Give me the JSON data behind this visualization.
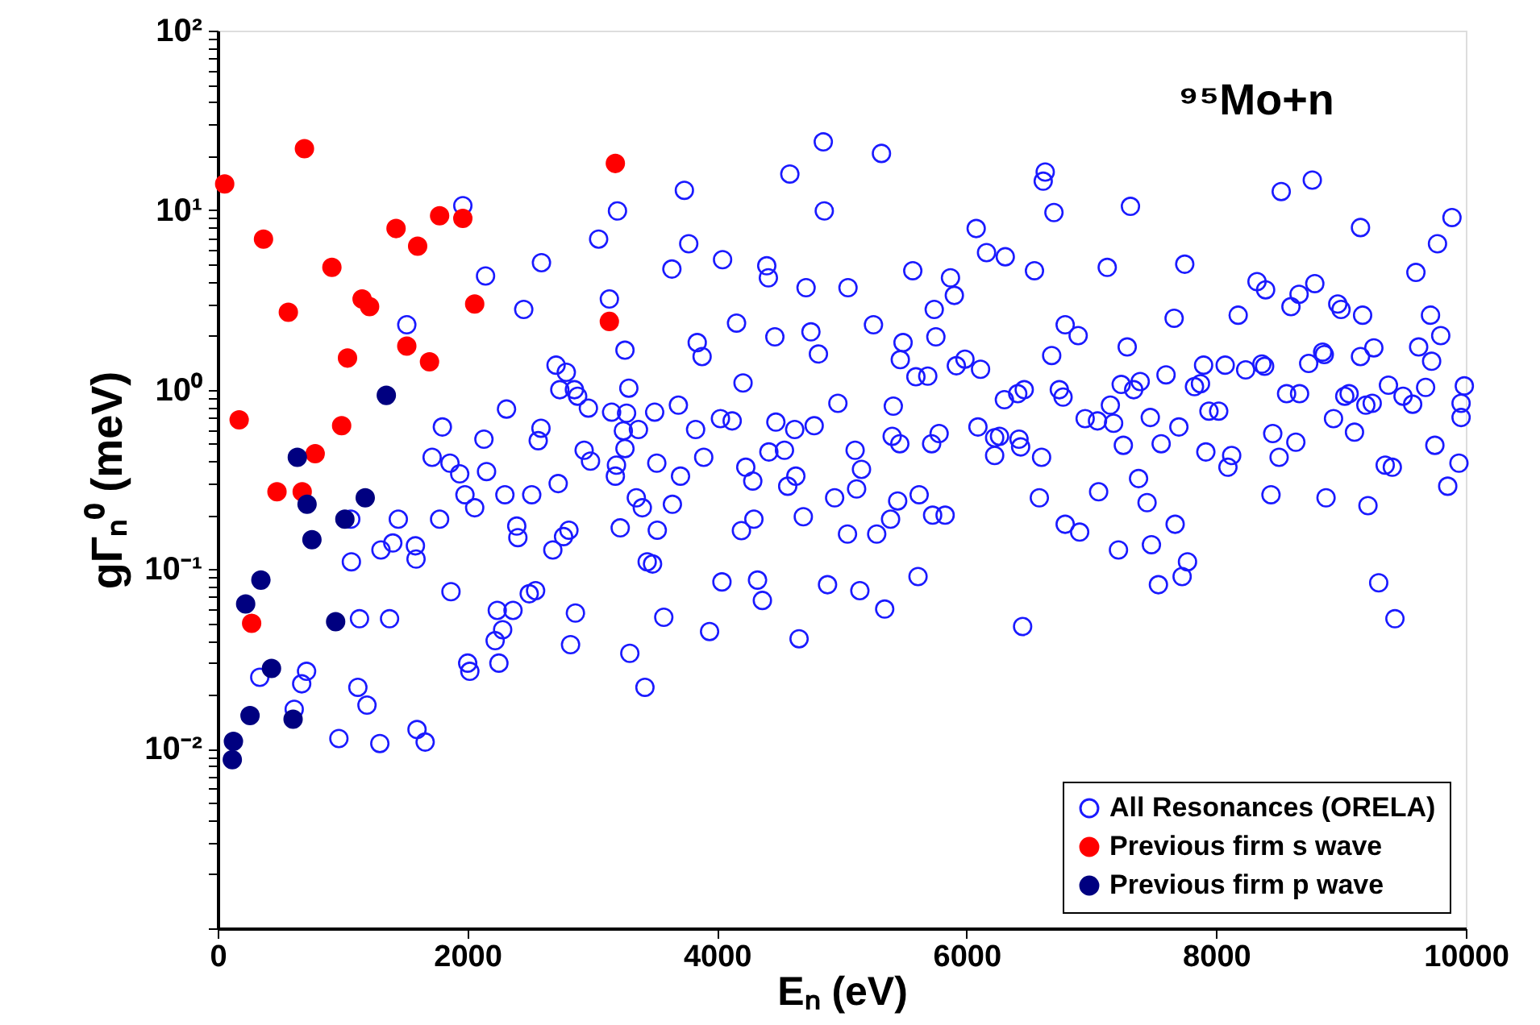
{
  "chart_data": {
    "type": "scatter",
    "xlabel": "Eₙ (eV)",
    "ylabel": "gΓₙ⁰ (meV)",
    "log": true,
    "grid": false,
    "legend": "bottom right",
    "marker": "circle",
    "annotations": [
      "⁹⁵Mo+n"
    ],
    "xlim": [
      0,
      10000
    ],
    "xticks": [
      0,
      2000,
      4000,
      6000,
      8000,
      10000
    ],
    "ylim": [
      0.001,
      100
    ],
    "yticks": [
      {
        "value": 0.001,
        "label": null
      },
      {
        "value": 0.002,
        "label": null
      },
      {
        "value": 0.003,
        "label": null
      },
      {
        "value": 0.004,
        "label": null
      },
      {
        "value": 0.005,
        "label": null
      },
      {
        "value": 0.006,
        "label": null
      },
      {
        "value": 0.007,
        "label": null
      },
      {
        "value": 0.008,
        "label": null
      },
      {
        "value": 0.009,
        "label": null
      },
      {
        "value": 0.01,
        "label": "10⁻²"
      },
      {
        "value": 0.02,
        "label": null
      },
      {
        "value": 0.03,
        "label": null
      },
      {
        "value": 0.04,
        "label": null
      },
      {
        "value": 0.05,
        "label": null
      },
      {
        "value": 0.06,
        "label": null
      },
      {
        "value": 0.07,
        "label": null
      },
      {
        "value": 0.08,
        "label": null
      },
      {
        "value": 0.09,
        "label": null
      },
      {
        "value": 0.1,
        "label": "10⁻¹"
      },
      {
        "value": 0.2,
        "label": null
      },
      {
        "value": 0.3,
        "label": null
      },
      {
        "value": 0.4,
        "label": null
      },
      {
        "value": 0.5,
        "label": null
      },
      {
        "value": 0.6,
        "label": null
      },
      {
        "value": 0.7,
        "label": null
      },
      {
        "value": 0.8,
        "label": null
      },
      {
        "value": 0.9,
        "label": null
      },
      {
        "value": 1,
        "label": "10⁰"
      },
      {
        "value": 2,
        "label": null
      },
      {
        "value": 3,
        "label": null
      },
      {
        "value": 4,
        "label": null
      },
      {
        "value": 5,
        "label": null
      },
      {
        "value": 6,
        "label": null
      },
      {
        "value": 7,
        "label": null
      },
      {
        "value": 8,
        "label": null
      },
      {
        "value": 9,
        "label": null
      },
      {
        "value": 10,
        "label": "10¹"
      },
      {
        "value": 20,
        "label": null
      },
      {
        "value": 30,
        "label": null
      },
      {
        "value": 40,
        "label": null
      },
      {
        "value": 50,
        "label": null
      },
      {
        "value": 60,
        "label": null
      },
      {
        "value": 70,
        "label": null
      },
      {
        "value": 80,
        "label": null
      },
      {
        "value": 90,
        "label": null
      },
      {
        "value": 100,
        "label": "10²"
      }
    ],
    "series": [
      {
        "name": "All Resonances (ORELA)",
        "color": "#1a1aff",
        "x": [
          1964,
          3203,
          3052,
          2594,
          2146,
          2452,
          3138,
          1515,
          3263,
          2711,
          2793,
          2741,
          2858,
          2884,
          2970,
          3294,
          3156,
          3276,
          3371,
          3250,
          2314,
          1800,
          2133,
          2590,
          2568,
          1718,
          1861,
          1939,
          2154,
          2936,
          2987,
          3263,
          3195,
          3186,
          2728,
          1981,
          2301,
          2516,
          2059,
          3354,
          3402,
          1066,
          1447,
          1778,
          1308,
          1403,
          1584,
          1589,
          1071,
          2396,
          2405,
          2685,
          2771,
          2814,
          3225,
          1869,
          2496,
          2547,
          2240,
          2366,
          2866,
          1136,
          1377,
          2283,
          2223,
          2827,
          3302,
          2003,
          2020,
          2253,
          337,
          712,
          673,
          1123,
          1196,
          613,
          971,
          1299,
          1597,
          1662,
          3423,
          3441,
          4852,
          5318,
          4584,
          3739,
          4860,
          6630,
          6614,
          6700,
          6077,
          6160,
          6310,
          6544,
          3774,
          4045,
          3639,
          4399,
          4412,
          4714,
          5050,
          5569,
          5871,
          5902,
          5741,
          4157,
          4464,
          4753,
          5254,
          5754,
          3842,
          3881,
          4813,
          5491,
          5469,
          5594,
          5689,
          5918,
          5987,
          6112,
          6790,
          6682,
          4209,
          3691,
          3501,
          3829,
          4028,
          4122,
          4472,
          4623,
          4779,
          4969,
          5413,
          5404,
          5465,
          5720,
          5780,
          6091,
          6225,
          6264,
          6420,
          6433,
          6225,
          6601,
          6303,
          6410,
          6462,
          6743,
          6773,
          3518,
          3708,
          3894,
          4416,
          4541,
          4231,
          4287,
          4632,
          4567,
          5107,
          5158,
          5119,
          4943,
          5620,
          5448,
          6583,
          3643,
          4692,
          4296,
          5391,
          5728,
          5828,
          3522,
          4196,
          5046,
          5280,
          6790,
          3484,
          4040,
          4325,
          4364,
          4886,
          5145,
          5344,
          5611,
          3574,
          3941,
          4658,
          6449,
          8770,
          8521,
          7313,
          9889,
          9156,
          9773,
          7127,
          7748,
          9600,
          8327,
          8396,
          8790,
          8664,
          8599,
          8974,
          9000,
          9173,
          8176,
          7663,
          9717,
          9799,
          6894,
          7287,
          9622,
          9263,
          9156,
          9726,
          8853,
          8866,
          8741,
          7899,
          8072,
          8236,
          8366,
          8388,
          7598,
          7239,
          7391,
          7339,
          7826,
          7874,
          8564,
          8668,
          9030,
          9065,
          9380,
          9497,
          9678,
          9574,
          9988,
          9962,
          9962,
          9199,
          9250,
          7152,
          6950,
          7049,
          7178,
          7472,
          7701,
          7942,
          8020,
          8940,
          9108,
          8453,
          7256,
          7559,
          7917,
          8124,
          8094,
          8504,
          8638,
          9752,
          9945,
          9354,
          9411,
          7378,
          7058,
          7446,
          8439,
          8880,
          9216,
          9855,
          7671,
          6906,
          7217,
          7481,
          7770,
          7727,
          7537,
          9302,
          9432
        ],
        "values": [
          10.6,
          9.9,
          6.9,
          5.1,
          4.3,
          2.8,
          3.2,
          2.3,
          1.66,
          1.37,
          1.25,
          1.0,
          1.0,
          0.92,
          0.79,
          1.02,
          0.75,
          0.74,
          0.6,
          0.59,
          0.78,
          0.62,
          0.53,
          0.61,
          0.52,
          0.42,
          0.39,
          0.34,
          0.35,
          0.46,
          0.4,
          0.47,
          0.38,
          0.33,
          0.3,
          0.26,
          0.26,
          0.26,
          0.22,
          0.25,
          0.22,
          0.19,
          0.19,
          0.19,
          0.128,
          0.14,
          0.135,
          0.114,
          0.11,
          0.174,
          0.15,
          0.128,
          0.152,
          0.165,
          0.17,
          0.075,
          0.073,
          0.076,
          0.059,
          0.059,
          0.057,
          0.053,
          0.053,
          0.046,
          0.04,
          0.038,
          0.034,
          0.03,
          0.027,
          0.03,
          0.025,
          0.027,
          0.023,
          0.022,
          0.0175,
          0.0166,
          0.0114,
          0.0107,
          0.0128,
          0.0109,
          0.022,
          0.11,
          24,
          20.7,
          15.9,
          12.9,
          9.9,
          16.3,
          14.5,
          9.7,
          7.9,
          5.8,
          5.5,
          4.6,
          6.5,
          5.3,
          4.7,
          4.9,
          4.2,
          3.7,
          3.7,
          4.6,
          4.2,
          3.35,
          2.8,
          2.35,
          1.97,
          2.1,
          2.3,
          1.97,
          1.83,
          1.53,
          1.58,
          1.83,
          1.47,
          1.18,
          1.19,
          1.36,
          1.48,
          1.3,
          2.3,
          1.55,
          1.09,
          0.82,
          0.75,
          0.6,
          0.69,
          0.67,
          0.66,
          0.6,
          0.63,
          0.84,
          0.81,
          0.55,
          0.5,
          0.5,
          0.57,
          0.62,
          0.54,
          0.55,
          0.53,
          0.48,
          0.43,
          0.42,
          0.88,
          0.95,
          1.0,
          1.0,
          0.91,
          0.39,
          0.33,
          0.42,
          0.45,
          0.46,
          0.37,
          0.31,
          0.33,
          0.29,
          0.46,
          0.36,
          0.28,
          0.25,
          0.26,
          0.24,
          0.25,
          0.23,
          0.196,
          0.19,
          0.19,
          0.2,
          0.2,
          0.165,
          0.164,
          0.157,
          0.157,
          0.178,
          0.107,
          0.085,
          0.087,
          0.067,
          0.082,
          0.076,
          0.06,
          0.091,
          0.054,
          0.045,
          0.041,
          0.048,
          14.7,
          12.7,
          10.5,
          9.1,
          8.0,
          6.5,
          4.8,
          5.0,
          4.5,
          4.0,
          3.6,
          3.9,
          3.4,
          2.9,
          3.0,
          2.8,
          2.6,
          2.6,
          2.5,
          2.6,
          2.0,
          2.0,
          1.73,
          1.73,
          1.71,
          1.53,
          1.44,
          1.62,
          1.57,
          1.4,
          1.37,
          1.37,
          1.29,
          1.39,
          1.35,
          1.21,
          1.07,
          1.11,
          1.0,
          1.04,
          1.08,
          0.95,
          0.95,
          0.92,
          0.95,
          1.06,
          0.92,
          1.03,
          0.83,
          1.05,
          0.84,
          0.7,
          0.82,
          0.84,
          0.82,
          0.69,
          0.67,
          0.65,
          0.7,
          0.62,
          0.76,
          0.76,
          0.69,
          0.58,
          0.57,
          0.49,
          0.5,
          0.45,
          0.43,
          0.37,
          0.42,
          0.51,
          0.49,
          0.39,
          0.38,
          0.37,
          0.32,
          0.27,
          0.235,
          0.26,
          0.25,
          0.226,
          0.29,
          0.178,
          0.161,
          0.128,
          0.137,
          0.11,
          0.091,
          0.082,
          0.084,
          0.053
        ]
      },
      {
        "name": "Previous firm s wave",
        "color": "#ff0000",
        "x": [
          56,
          695,
          3186,
          367,
          1429,
          1778,
          1964,
          1602,
          915,
          566,
          1157,
          1217,
          2059,
          3138,
          1515,
          1697,
          1040,
          172,
          993,
          781,
          475,
          677,
          272
        ],
        "values": [
          14,
          22,
          18.2,
          6.9,
          7.9,
          9.3,
          9.0,
          6.3,
          4.8,
          2.7,
          3.2,
          2.9,
          3.0,
          2.4,
          1.75,
          1.43,
          1.5,
          0.68,
          0.63,
          0.44,
          0.27,
          0.27,
          0.05
        ]
      },
      {
        "name": "Previous firm p wave",
        "color": "#000080",
        "x": [
          1351,
          638,
          716,
          1182,
          1019,
          755,
          346,
          224,
          945,
          431,
          259,
          604,
          126,
          117
        ],
        "values": [
          0.93,
          0.42,
          0.23,
          0.25,
          0.19,
          0.146,
          0.087,
          0.064,
          0.051,
          0.028,
          0.0153,
          0.0146,
          0.011,
          0.0087
        ]
      }
    ]
  }
}
